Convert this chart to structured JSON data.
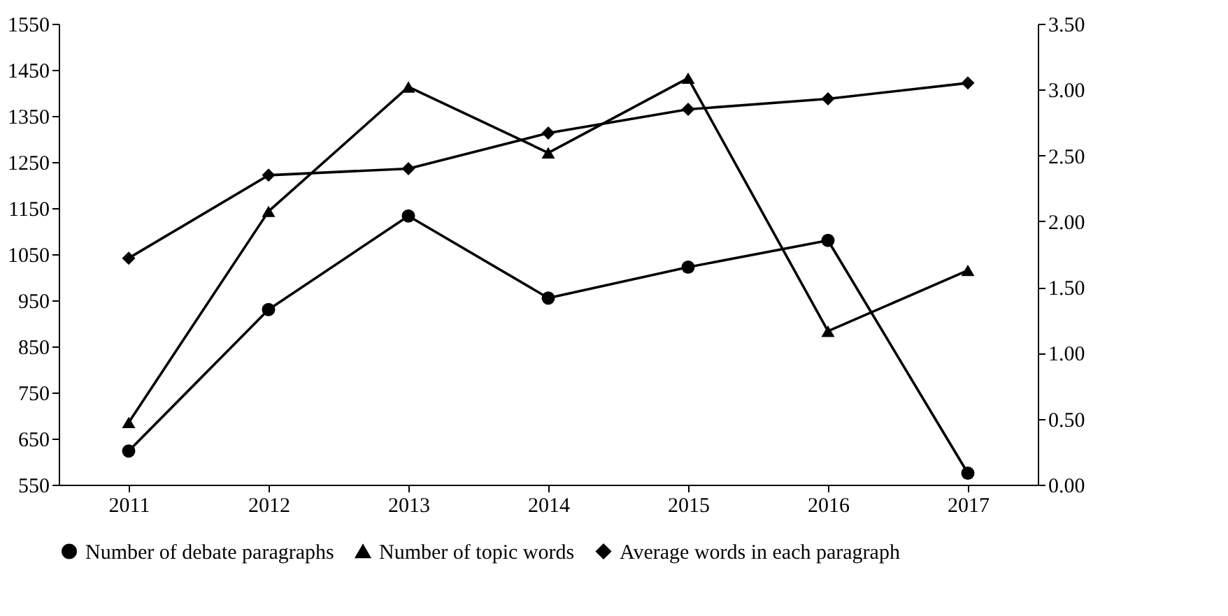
{
  "chart_data": {
    "type": "line",
    "categories": [
      "2011",
      "2012",
      "2013",
      "2014",
      "2015",
      "2016",
      "2017"
    ],
    "series": [
      {
        "name": "Number of debate paragraphs",
        "color": "#000000",
        "marker": "circle",
        "values": [
          623,
          930,
          1133,
          955,
          1022,
          1080,
          575
        ]
      },
      {
        "name": "Number of topic words",
        "color": "#000000",
        "marker": "triangle",
        "values": [
          685,
          1143,
          1413,
          1270,
          1432,
          883,
          1015
        ]
      },
      {
        "name": "Average words in each paragraph",
        "color": "#000000",
        "marker": "diamond",
        "axis": "y2",
        "values": [
          1.72,
          2.35,
          2.4,
          2.67,
          2.85,
          2.93,
          3.05
        ]
      }
    ],
    "ylim": [
      550,
      1550
    ],
    "yticks": [
      550,
      650,
      750,
      850,
      950,
      1050,
      1150,
      1250,
      1350,
      1450,
      1550
    ],
    "y2lim": [
      0,
      3.5
    ],
    "y2ticks": [
      {
        "value": 0,
        "label": "0.00"
      },
      {
        "value": 0.5,
        "label": "0.50"
      },
      {
        "value": 1,
        "label": "1.00"
      },
      {
        "value": 1.5,
        "label": "1.50"
      },
      {
        "value": 2,
        "label": "2.00"
      },
      {
        "value": 2.5,
        "label": "2.50"
      },
      {
        "value": 3,
        "label": "3.00"
      },
      {
        "value": 3.5,
        "label": "3.50"
      }
    ],
    "grid": false,
    "legend": "bottom",
    "line_style": "solid"
  }
}
